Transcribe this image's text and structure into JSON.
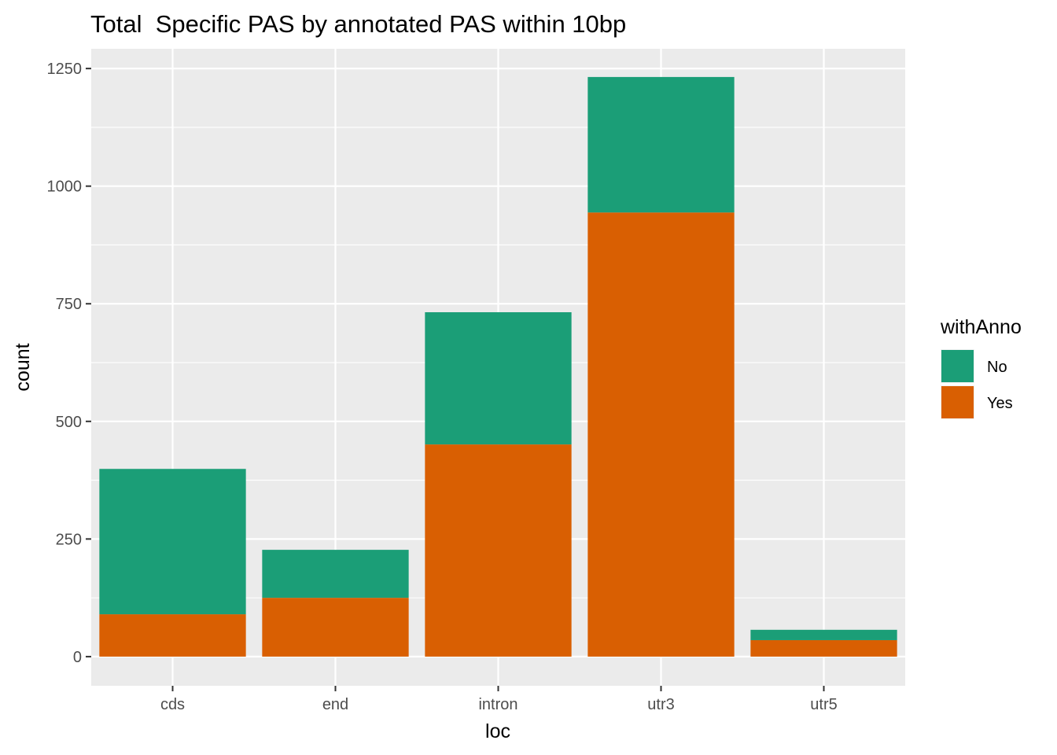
{
  "chart_data": {
    "type": "bar",
    "stacked": true,
    "title": "Total  Specific PAS by annotated PAS within 10bp",
    "xlabel": "loc",
    "ylabel": "count",
    "categories": [
      "cds",
      "end",
      "intron",
      "utr3",
      "utr5"
    ],
    "series": [
      {
        "name": "No",
        "color": "#1B9E77",
        "values": [
          309,
          102,
          281,
          288,
          22
        ]
      },
      {
        "name": "Yes",
        "color": "#D95F02",
        "values": [
          90,
          125,
          451,
          944,
          35
        ]
      }
    ],
    "ylim": [
      -62,
      1292
    ],
    "yticks": [
      0,
      250,
      500,
      750,
      1000,
      1250
    ],
    "yticklabels": [
      "0",
      "250",
      "500",
      "750",
      "1000",
      "1250"
    ],
    "grid": true,
    "panel_background": "#EBEBEB",
    "legend": {
      "title": "withAnno",
      "position": "right"
    }
  }
}
